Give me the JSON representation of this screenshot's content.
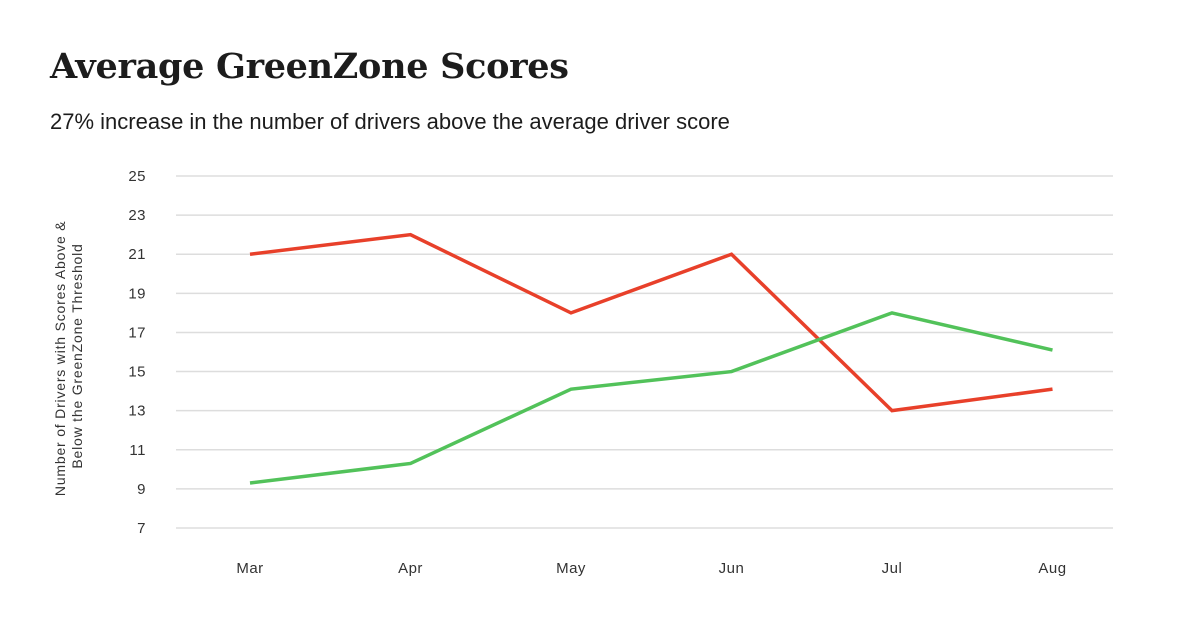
{
  "chart_data": {
    "type": "line",
    "title": "Average GreenZone Scores",
    "subtitle": "27% increase in the number of drivers above the average driver score",
    "xlabel": "",
    "ylabel": "Number of Drivers with Scores Above & Below the GreenZone Threshold",
    "ylabel_lines": [
      "Number of Drivers with Scores Above &",
      "Below the GreenZone Threshold"
    ],
    "categories": [
      "Mar",
      "Apr",
      "May",
      "Jun",
      "Jul",
      "Aug"
    ],
    "yticks": [
      7,
      9,
      11,
      13,
      15,
      17,
      19,
      21,
      23,
      25
    ],
    "ylim": [
      7,
      25
    ],
    "grid": true,
    "legend": "none",
    "series": [
      {
        "color": "#e8402a",
        "values": [
          21,
          22,
          18,
          21,
          13,
          14.1
        ]
      },
      {
        "color": "#52c25a",
        "values": [
          9.3,
          10.3,
          14.1,
          15,
          18,
          16.1
        ]
      }
    ]
  }
}
